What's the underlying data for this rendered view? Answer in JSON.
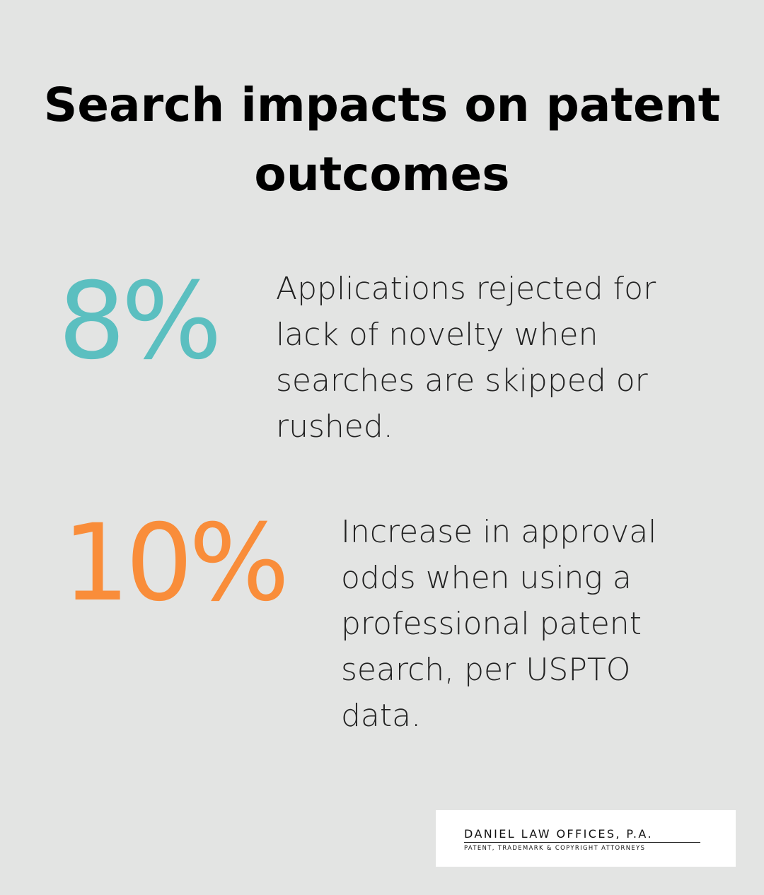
{
  "header": {
    "title": "Search impacts on patent outcomes"
  },
  "stats": [
    {
      "value": "8%",
      "color": "#5bbfc0",
      "text": "Applications rejected for lack of novelty when searches are skipped or rushed."
    },
    {
      "value": "10%",
      "color": "#f98d3a",
      "text": "Increase in approval odds when using a professional patent search, per USPTO data."
    }
  ],
  "footer": {
    "name": "DANIEL LAW OFFICES, P.A.",
    "tagline": "PATENT, TRADEMARK & COPYRIGHT ATTORNEYS"
  }
}
